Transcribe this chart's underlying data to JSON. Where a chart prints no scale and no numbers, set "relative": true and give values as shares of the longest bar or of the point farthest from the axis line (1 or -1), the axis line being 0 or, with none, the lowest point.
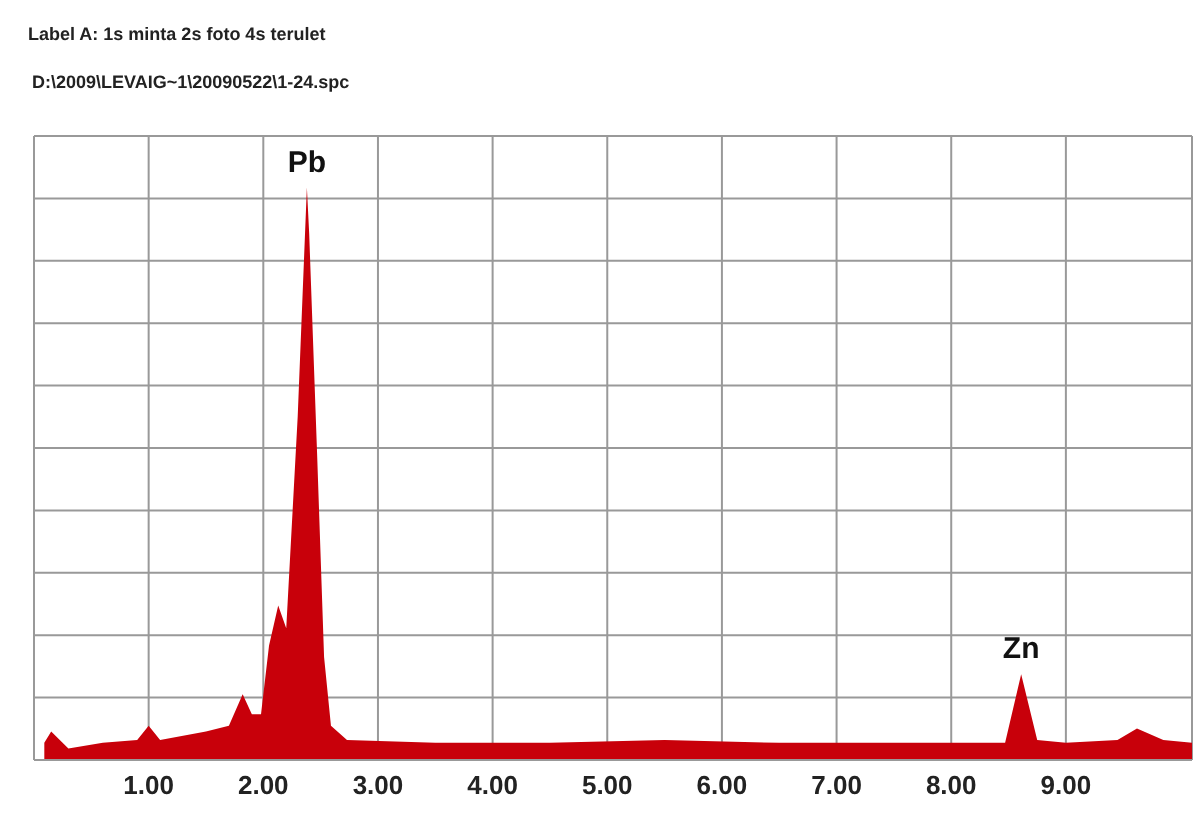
{
  "chart_data": {
    "type": "area",
    "title": "Label A: 1s minta 2s foto 4s terulet",
    "subtitle": "D:\\2009\\LEVAIG~1\\20090522\\1-24.spc",
    "relative": true,
    "x": [
      0.09,
      0.15,
      0.3,
      0.6,
      0.9,
      1.0,
      1.1,
      1.5,
      1.7,
      1.82,
      1.9,
      1.98,
      2.05,
      2.13,
      2.2,
      2.3,
      2.38,
      2.4,
      2.47,
      2.53,
      2.59,
      2.73,
      3.5,
      4.5,
      5.5,
      6.5,
      7.5,
      8.3,
      8.47,
      8.61,
      8.75,
      9.0,
      9.45,
      9.62,
      9.85,
      10.1
    ],
    "series": [
      {
        "color": "#c8000a",
        "values": [
          0.03,
          0.05,
          0.02,
          0.03,
          0.035,
          0.06,
          0.035,
          0.05,
          0.06,
          0.115,
          0.08,
          0.08,
          0.2,
          0.27,
          0.23,
          0.6,
          1,
          0.92,
          0.53,
          0.18,
          0.06,
          0.035,
          0.03,
          0.03,
          0.035,
          0.03,
          0.03,
          0.03,
          0.03,
          0.15,
          0.035,
          0.03,
          0.035,
          0.055,
          0.035,
          0.03
        ]
      }
    ],
    "xlim": [
      0,
      10.1
    ],
    "xticks": [
      {
        "value": 1,
        "label": "1.00"
      },
      {
        "value": 2,
        "label": "2.00"
      },
      {
        "value": 3,
        "label": "3.00"
      },
      {
        "value": 4,
        "label": "4.00"
      },
      {
        "value": 5,
        "label": "5.00"
      },
      {
        "value": 6,
        "label": "6.00"
      },
      {
        "value": 7,
        "label": "7.00"
      },
      {
        "value": 8,
        "label": "8.00"
      },
      {
        "value": 9,
        "label": "9.00"
      }
    ],
    "annotations": [
      {
        "text": "Pb",
        "x": 2.38,
        "y": 1
      },
      {
        "text": "Zn",
        "x": 8.61,
        "y": 0.15
      }
    ],
    "grid": true
  }
}
